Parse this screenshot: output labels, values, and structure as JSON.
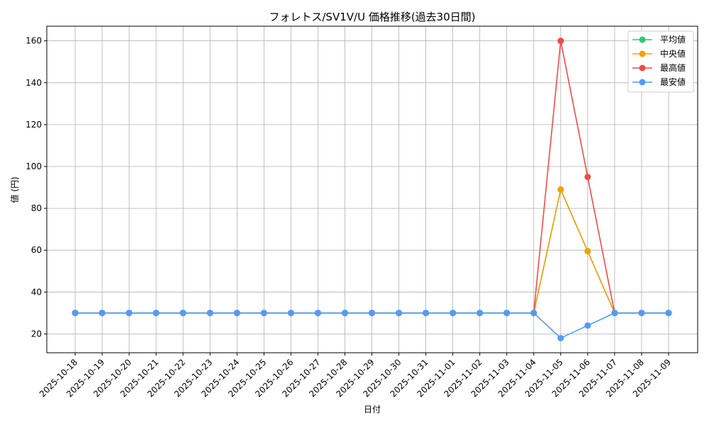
{
  "chart_data": {
    "type": "line",
    "title": "フォレトス/SV1V/U 価格推移(過去30日間)",
    "xlabel": "日付",
    "ylabel": "値 (円)",
    "categories": [
      "2025-10-18",
      "2025-10-19",
      "2025-10-20",
      "2025-10-21",
      "2025-10-22",
      "2025-10-23",
      "2025-10-24",
      "2025-10-25",
      "2025-10-26",
      "2025-10-27",
      "2025-10-28",
      "2025-10-29",
      "2025-10-30",
      "2025-10-31",
      "2025-11-01",
      "2025-11-02",
      "2025-11-03",
      "2025-11-04",
      "2025-11-05",
      "2025-11-06",
      "2025-11-07",
      "2025-11-08",
      "2025-11-09"
    ],
    "yticks": [
      20,
      40,
      60,
      80,
      100,
      120,
      140,
      160
    ],
    "ylim": [
      11,
      167
    ],
    "grid": true,
    "legend_position": "top-right",
    "series": [
      {
        "name": "平均値",
        "color": "#2ecc71",
        "values": [
          30,
          30,
          30,
          30,
          30,
          30,
          30,
          30,
          30,
          30,
          30,
          30,
          30,
          30,
          30,
          30,
          30,
          30,
          89,
          59.5,
          30,
          30,
          30
        ]
      },
      {
        "name": "中央値",
        "color": "#f5a10a",
        "values": [
          30,
          30,
          30,
          30,
          30,
          30,
          30,
          30,
          30,
          30,
          30,
          30,
          30,
          30,
          30,
          30,
          30,
          30,
          89,
          59.5,
          30,
          30,
          30
        ]
      },
      {
        "name": "最高値",
        "color": "#ef4b4b",
        "values": [
          30,
          30,
          30,
          30,
          30,
          30,
          30,
          30,
          30,
          30,
          30,
          30,
          30,
          30,
          30,
          30,
          30,
          30,
          160,
          95,
          30,
          30,
          30
        ]
      },
      {
        "name": "最安値",
        "color": "#4f9cf5",
        "values": [
          30,
          30,
          30,
          30,
          30,
          30,
          30,
          30,
          30,
          30,
          30,
          30,
          30,
          30,
          30,
          30,
          30,
          30,
          18,
          24,
          30,
          30,
          30
        ]
      }
    ]
  }
}
